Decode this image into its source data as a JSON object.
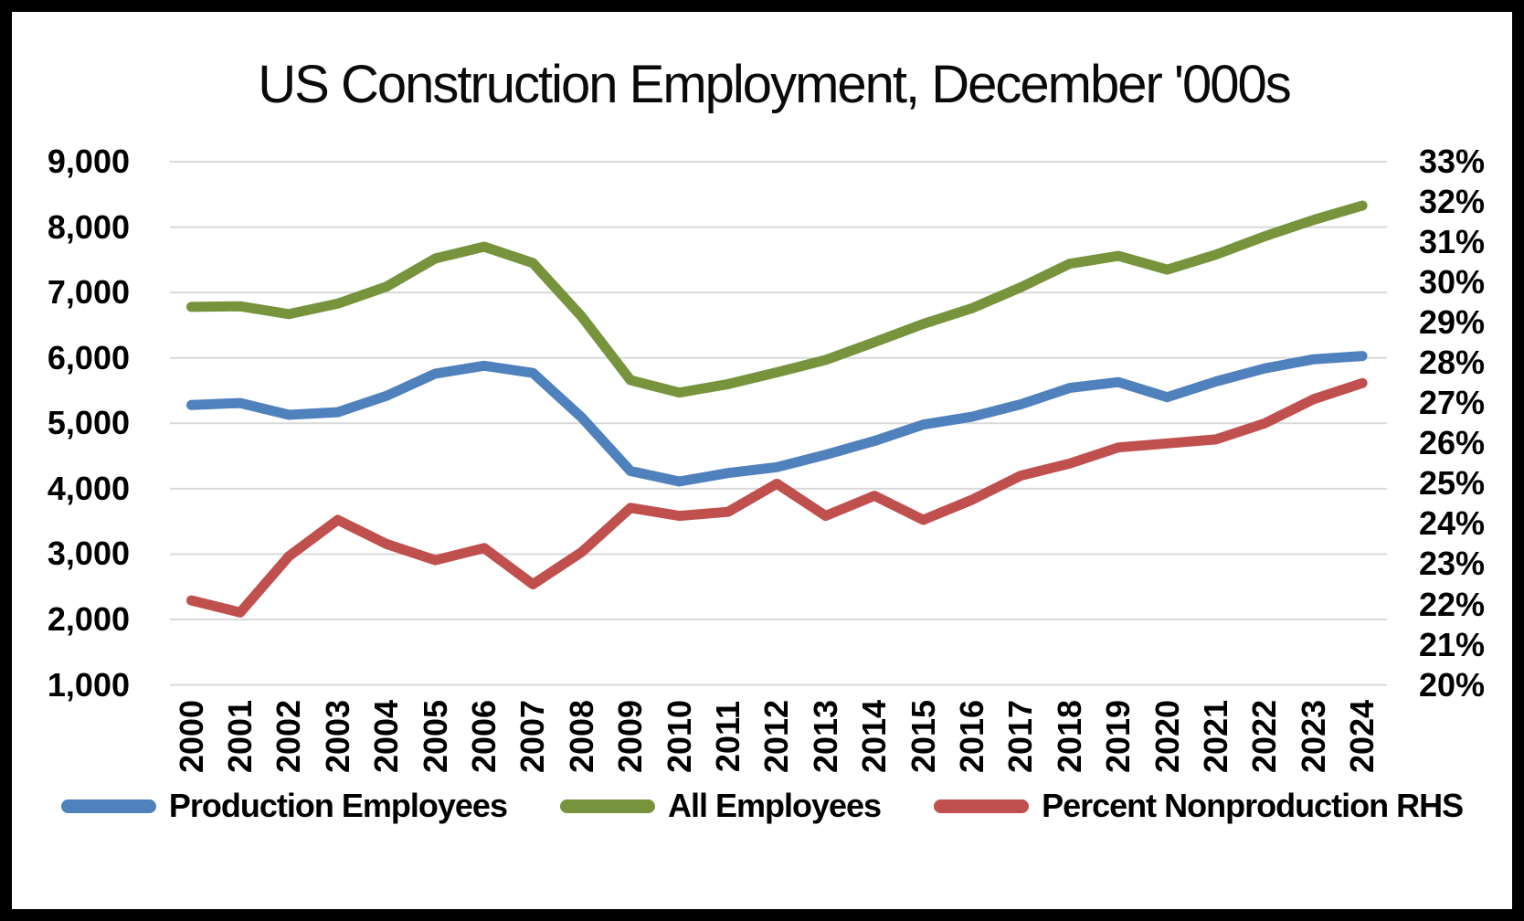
{
  "chart_data": {
    "type": "line",
    "title": "US Construction Employment, December '000s",
    "years": [
      2000,
      2001,
      2002,
      2003,
      2004,
      2005,
      2006,
      2007,
      2008,
      2009,
      2010,
      2011,
      2012,
      2013,
      2014,
      2015,
      2016,
      2017,
      2018,
      2019,
      2020,
      2021,
      2022,
      2023,
      2024
    ],
    "series": [
      {
        "name": "Production Employees",
        "axis": "left",
        "color": "#4f81bd",
        "values": [
          5280,
          5310,
          5130,
          5170,
          5420,
          5760,
          5880,
          5770,
          5090,
          4270,
          4110,
          4240,
          4330,
          4520,
          4730,
          4980,
          5100,
          5290,
          5540,
          5630,
          5400,
          5640,
          5840,
          5980,
          6030
        ]
      },
      {
        "name": "All Employees",
        "axis": "left",
        "color": "#77933c",
        "values": [
          6780,
          6790,
          6670,
          6830,
          7090,
          7520,
          7700,
          7450,
          6630,
          5660,
          5470,
          5600,
          5780,
          5970,
          6240,
          6520,
          6760,
          7080,
          7440,
          7560,
          7350,
          7580,
          7860,
          8110,
          8330
        ]
      },
      {
        "name": "Percent Nonproduction RHS",
        "axis": "right",
        "color": "#c0504d",
        "values": [
          22.1,
          21.8,
          23.2,
          24.1,
          23.5,
          23.1,
          23.4,
          22.5,
          23.3,
          24.4,
          24.2,
          24.3,
          25.0,
          24.2,
          24.7,
          24.1,
          24.6,
          25.2,
          25.5,
          25.9,
          26.0,
          26.1,
          26.5,
          27.1,
          27.5
        ]
      }
    ],
    "left_axis": {
      "min": 1000,
      "max": 9000,
      "step": 1000,
      "tick_labels": [
        "9,000",
        "8,000",
        "7,000",
        "6,000",
        "5,000",
        "4,000",
        "3,000",
        "2,000",
        "1,000"
      ]
    },
    "right_axis": {
      "min": 20,
      "max": 33,
      "step": 1,
      "tick_labels": [
        "33%",
        "32%",
        "31%",
        "30%",
        "29%",
        "28%",
        "27%",
        "26%",
        "25%",
        "24%",
        "23%",
        "22%",
        "21%",
        "20%"
      ]
    },
    "grid": "horizontal",
    "legend_position": "bottom",
    "gridline_color": "#d9d9d9",
    "background_color": "#ffffff",
    "frame_color": "#000000"
  }
}
